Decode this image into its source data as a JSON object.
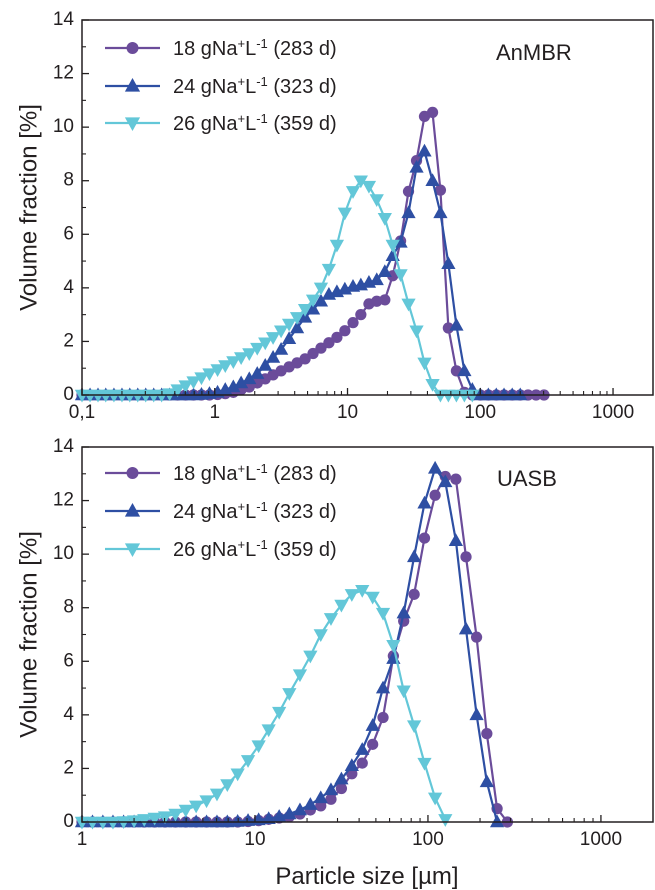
{
  "chart_data": [
    {
      "type": "line",
      "panel_label": "AnMBR",
      "xscale": "log",
      "xlim": [
        0.1,
        2000
      ],
      "ylim": [
        0,
        14
      ],
      "xticks": [
        0.1,
        1,
        10,
        100,
        1000
      ],
      "xtick_labels": [
        "0,1",
        "1",
        "10",
        "100",
        "1000"
      ],
      "yticks": [
        0,
        2,
        4,
        6,
        8,
        10,
        12,
        14
      ],
      "ytick_labels": [
        "0",
        "2",
        "4",
        "6",
        "8",
        "10",
        "12",
        "14"
      ],
      "ylabel": "Volume fraction [%]",
      "xlabel": "",
      "legend_position": "top-left",
      "series": [
        {
          "name": "18 gNa⁺L⁻¹ (283 d)",
          "legend_main": "18 gNa",
          "legend_sup1": "+",
          "legend_mid": "L",
          "legend_sup2": "-1",
          "legend_tail": " (283 d)",
          "marker": "circle",
          "color": "#6b4c9a",
          "x": [
            0.1,
            0.115,
            0.132,
            0.151,
            0.174,
            0.2,
            0.229,
            0.263,
            0.302,
            0.347,
            0.398,
            0.457,
            0.525,
            0.603,
            0.692,
            0.794,
            0.912,
            1.05,
            1.2,
            1.38,
            1.58,
            1.82,
            2.09,
            2.4,
            2.75,
            3.16,
            3.63,
            4.17,
            4.79,
            5.5,
            6.31,
            7.24,
            8.32,
            9.55,
            11.0,
            12.6,
            14.5,
            16.6,
            19.1,
            21.9,
            25.1,
            28.8,
            33.1,
            38.0,
            43.7,
            50.1,
            57.5,
            66.1,
            75.9,
            87.1,
            100,
            115,
            132,
            151,
            174,
            200,
            229,
            263,
            302
          ],
          "y": [
            0,
            0,
            0,
            0,
            0,
            0,
            0,
            0,
            0,
            0,
            0,
            0,
            0,
            0,
            0,
            0,
            0,
            0.02,
            0.05,
            0.1,
            0.2,
            0.3,
            0.45,
            0.6,
            0.75,
            0.9,
            1.05,
            1.2,
            1.35,
            1.55,
            1.75,
            1.95,
            2.15,
            2.4,
            2.7,
            3.0,
            3.4,
            3.5,
            3.55,
            4.45,
            5.75,
            7.6,
            8.75,
            10.4,
            10.55,
            7.65,
            2.5,
            0.9,
            0.1,
            0,
            0,
            0,
            0,
            0,
            0,
            0,
            0,
            0,
            0
          ]
        },
        {
          "name": "24 gNa⁺L⁻¹ (323 d)",
          "legend_main": "24 gNa",
          "legend_sup1": "+",
          "legend_mid": "L",
          "legend_sup2": "-1",
          "legend_tail": " (323 d)",
          "marker": "triangle-up",
          "color": "#2e4fa3",
          "x": [
            0.1,
            0.115,
            0.132,
            0.151,
            0.174,
            0.2,
            0.229,
            0.263,
            0.302,
            0.347,
            0.398,
            0.457,
            0.525,
            0.603,
            0.692,
            0.794,
            0.912,
            1.05,
            1.2,
            1.38,
            1.58,
            1.82,
            2.09,
            2.4,
            2.75,
            3.16,
            3.63,
            4.17,
            4.79,
            5.5,
            6.31,
            7.24,
            8.32,
            9.55,
            11.0,
            12.6,
            14.5,
            16.6,
            19.1,
            21.9,
            25.1,
            28.8,
            33.1,
            38.0,
            43.7,
            50.1,
            57.5,
            66.1,
            75.9,
            87.1,
            100,
            115,
            132,
            151,
            174,
            200
          ],
          "y": [
            0,
            0,
            0,
            0,
            0,
            0,
            0,
            0,
            0,
            0,
            0,
            0,
            0,
            0,
            0,
            0.02,
            0.05,
            0.1,
            0.2,
            0.3,
            0.45,
            0.6,
            0.8,
            1.1,
            1.4,
            1.7,
            2.1,
            2.5,
            2.9,
            3.2,
            3.5,
            3.75,
            3.85,
            3.95,
            4.05,
            4.1,
            4.2,
            4.3,
            4.6,
            5.2,
            5.7,
            6.8,
            8.5,
            9.1,
            8.0,
            6.8,
            4.9,
            2.6,
            0.9,
            0.2,
            0,
            0,
            0,
            0,
            0,
            0
          ]
        },
        {
          "name": "26 gNa⁺L⁻¹ (359 d)",
          "legend_main": "26 gNa",
          "legend_sup1": "+",
          "legend_mid": "L",
          "legend_sup2": "-1",
          "legend_tail": " (359 d)",
          "marker": "triangle-down",
          "color": "#63c7d8",
          "x": [
            0.1,
            0.115,
            0.132,
            0.151,
            0.174,
            0.2,
            0.229,
            0.263,
            0.302,
            0.347,
            0.398,
            0.457,
            0.525,
            0.603,
            0.692,
            0.794,
            0.912,
            1.05,
            1.2,
            1.38,
            1.58,
            1.82,
            2.09,
            2.4,
            2.75,
            3.16,
            3.63,
            4.17,
            4.79,
            5.5,
            6.31,
            7.24,
            8.32,
            9.55,
            11.0,
            12.6,
            14.5,
            16.6,
            19.1,
            21.9,
            25.1,
            28.8,
            33.1,
            38.0,
            43.7,
            50.1,
            57.5,
            66.1,
            75.9,
            87.1
          ],
          "y": [
            0,
            0,
            0,
            0,
            0,
            0,
            0,
            0,
            0,
            0,
            0,
            0.05,
            0.2,
            0.35,
            0.5,
            0.65,
            0.8,
            0.95,
            1.1,
            1.25,
            1.4,
            1.55,
            1.75,
            1.95,
            2.15,
            2.4,
            2.65,
            2.9,
            3.2,
            3.55,
            4.0,
            4.7,
            5.6,
            6.8,
            7.6,
            8.0,
            7.8,
            7.3,
            6.6,
            5.6,
            4.5,
            3.4,
            2.4,
            1.2,
            0.4,
            0,
            0,
            0,
            0,
            0
          ]
        }
      ]
    },
    {
      "type": "line",
      "panel_label": "UASB",
      "xscale": "log",
      "xlim": [
        1,
        2000
      ],
      "ylim": [
        0,
        14
      ],
      "xticks": [
        1,
        10,
        100,
        1000
      ],
      "xtick_labels": [
        "1",
        "10",
        "100",
        "1000"
      ],
      "yticks": [
        0,
        2,
        4,
        6,
        8,
        10,
        12,
        14
      ],
      "ytick_labels": [
        "0",
        "2",
        "4",
        "6",
        "8",
        "10",
        "12",
        "14"
      ],
      "ylabel": "Volume fraction [%]",
      "xlabel": "Particle size [µm]",
      "legend_position": "top-left",
      "series": [
        {
          "name": "18 gNa⁺L⁻¹ (283 d)",
          "legend_main": "18 gNa",
          "legend_sup1": "+",
          "legend_mid": "L",
          "legend_sup2": "-1",
          "legend_tail": " (283 d)",
          "marker": "circle",
          "color": "#6b4c9a",
          "x": [
            1.0,
            1.15,
            1.32,
            1.51,
            1.74,
            2.0,
            2.29,
            2.63,
            3.02,
            3.47,
            3.98,
            4.57,
            5.25,
            6.03,
            6.92,
            7.94,
            9.12,
            10.5,
            12.0,
            13.8,
            15.8,
            18.2,
            20.9,
            24.0,
            27.5,
            31.6,
            36.3,
            41.7,
            47.9,
            55.0,
            63.1,
            72.4,
            83.2,
            95.5,
            110,
            126,
            145,
            166,
            191,
            219,
            251,
            288
          ],
          "y": [
            0,
            0,
            0,
            0,
            0,
            0,
            0,
            0,
            0,
            0,
            0,
            0,
            0,
            0,
            0,
            0,
            0.02,
            0.05,
            0.1,
            0.15,
            0.2,
            0.3,
            0.45,
            0.6,
            0.85,
            1.25,
            1.8,
            2.2,
            2.9,
            3.9,
            6.2,
            7.5,
            8.5,
            10.6,
            12.2,
            12.9,
            12.8,
            9.9,
            6.9,
            3.3,
            0.5,
            0
          ]
        },
        {
          "name": "24 gNa⁺L⁻¹ (323 d)",
          "legend_main": "24 gNa",
          "legend_sup1": "+",
          "legend_mid": "L",
          "legend_sup2": "-1",
          "legend_tail": " (323 d)",
          "marker": "triangle-up",
          "color": "#2e4fa3",
          "x": [
            1.0,
            1.15,
            1.32,
            1.51,
            1.74,
            2.0,
            2.29,
            2.63,
            3.02,
            3.47,
            3.98,
            4.57,
            5.25,
            6.03,
            6.92,
            7.94,
            9.12,
            10.5,
            12.0,
            13.8,
            15.8,
            18.2,
            20.9,
            24.0,
            27.5,
            31.6,
            36.3,
            41.7,
            47.9,
            55.0,
            63.1,
            72.4,
            83.2,
            95.5,
            110,
            126,
            145,
            166,
            191,
            219,
            251
          ],
          "y": [
            0,
            0,
            0,
            0,
            0,
            0,
            0,
            0,
            0,
            0,
            0,
            0,
            0,
            0,
            0,
            0.02,
            0.05,
            0.08,
            0.12,
            0.2,
            0.3,
            0.45,
            0.65,
            0.9,
            1.2,
            1.6,
            2.1,
            2.7,
            3.6,
            5.0,
            6.1,
            7.8,
            9.9,
            11.9,
            13.2,
            12.7,
            10.5,
            7.2,
            4.0,
            1.5,
            0
          ]
        },
        {
          "name": "26 gNa⁺L⁻¹ (359 d)",
          "legend_main": "26 gNa",
          "legend_sup1": "+",
          "legend_mid": "L",
          "legend_sup2": "-1",
          "legend_tail": " (359 d)",
          "marker": "triangle-down",
          "color": "#63c7d8",
          "x": [
            1.0,
            1.15,
            1.32,
            1.51,
            1.74,
            2.0,
            2.29,
            2.63,
            3.02,
            3.47,
            3.98,
            4.57,
            5.25,
            6.03,
            6.92,
            7.94,
            9.12,
            10.5,
            12.0,
            13.8,
            15.8,
            18.2,
            20.9,
            24.0,
            27.5,
            31.6,
            36.3,
            41.7,
            47.9,
            55.0,
            63.1,
            72.4,
            83.2,
            95.5,
            110,
            126
          ],
          "y": [
            0,
            0,
            0,
            0,
            0.02,
            0.05,
            0.1,
            0.15,
            0.2,
            0.3,
            0.45,
            0.6,
            0.8,
            1.05,
            1.4,
            1.8,
            2.3,
            2.85,
            3.45,
            4.1,
            4.8,
            5.5,
            6.2,
            7.0,
            7.6,
            8.1,
            8.5,
            8.65,
            8.4,
            7.8,
            6.6,
            4.9,
            3.6,
            2.2,
            0.9,
            0.1
          ]
        }
      ]
    }
  ]
}
